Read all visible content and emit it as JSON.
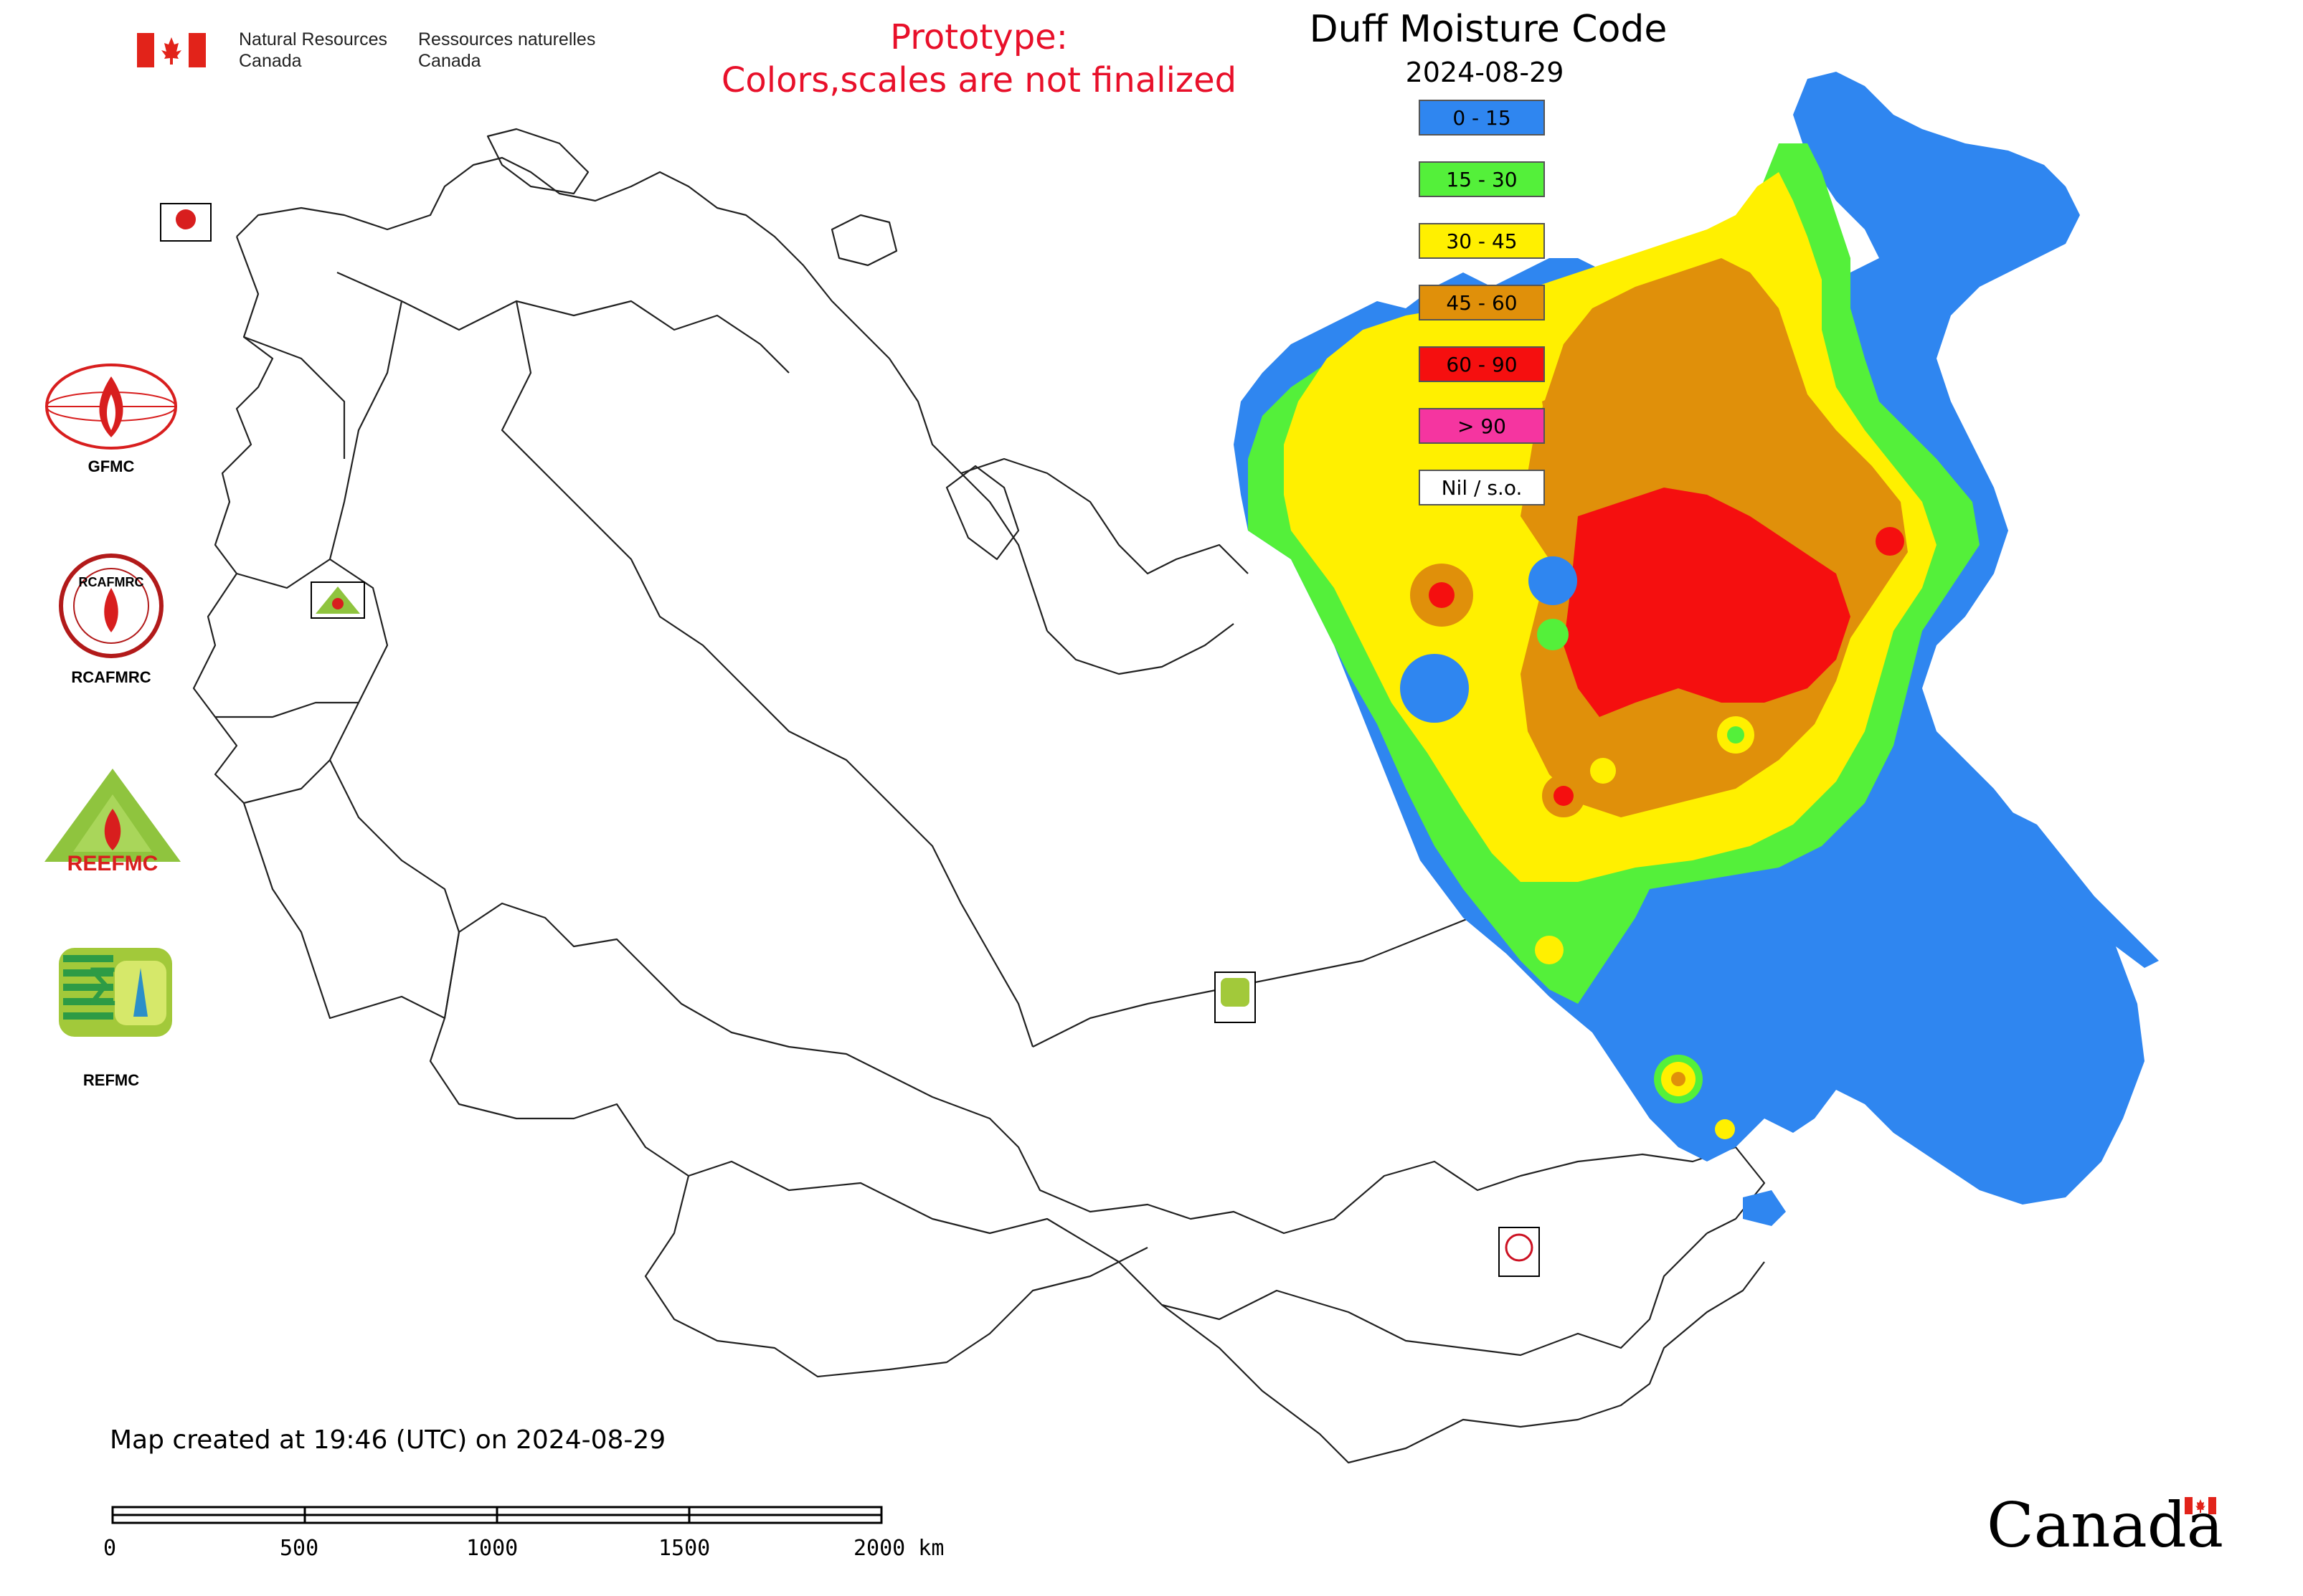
{
  "header": {
    "gov_en_line1": "Natural Resources",
    "gov_en_line2": "Canada",
    "gov_fr_line1": "Ressources naturelles",
    "gov_fr_line2": "Canada",
    "prototype_line1": "Prototype:",
    "prototype_line2": "Colors,scales are not finalized",
    "prototype_color": "#e8102a"
  },
  "map": {
    "title": "Duff Moisture Code",
    "date": "2024-08-29",
    "legend": [
      {
        "label": "0 - 15",
        "color": "#2f86f0"
      },
      {
        "label": "15 - 30",
        "color": "#54f03a"
      },
      {
        "label": "30 - 45",
        "color": "#fff000"
      },
      {
        "label": "45 - 60",
        "color": "#e0900a"
      },
      {
        "label": "60 - 90",
        "color": "#f50f0f"
      },
      {
        "label": "> 90",
        "color": "#f535a0"
      },
      {
        "label": "Nil / s.o.",
        "color": "#ffffff"
      }
    ]
  },
  "organizations": [
    {
      "label": "GFMC",
      "icon": "gfmc-logo"
    },
    {
      "label": "RCAFMRC",
      "icon": "rcafmrc-logo"
    },
    {
      "label": "REEFMC",
      "icon": "reefmc-logo"
    },
    {
      "label": "REFMC",
      "icon": "refmc-logo"
    }
  ],
  "footer": {
    "created_text": "Map created at 19:46 (UTC) on 2024-08-29",
    "scale_labels": [
      "0",
      "500",
      "1000",
      "1500",
      "2000 km"
    ],
    "canada_wordmark": "Canada"
  }
}
